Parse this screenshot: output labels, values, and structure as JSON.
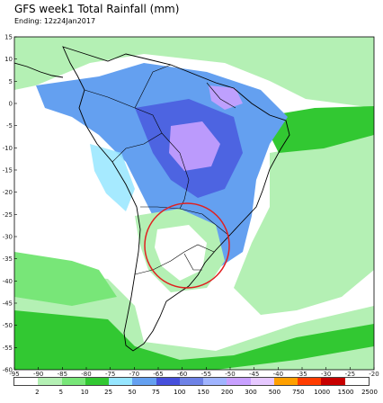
{
  "title": "GFS week1 Total Rainfall (mm)",
  "subtitle": "Ending: 12z24Jan2017",
  "latitude_labels": [
    "15",
    "10",
    "5",
    "0",
    "-5",
    "-10",
    "-15",
    "-20",
    "-25",
    "-30",
    "-35",
    "-40",
    "-45",
    "-50",
    "-55",
    "-60"
  ],
  "longitude_labels": [
    "-95",
    "-90",
    "-85",
    "-80",
    "-75",
    "-70",
    "-65",
    "-60",
    "-55",
    "-50",
    "-45",
    "-40",
    "-35",
    "-30",
    "-25",
    "-20"
  ],
  "legend": {
    "labels": [
      "2",
      "5",
      "10",
      "25",
      "50",
      "75",
      "100",
      "150",
      "200",
      "300",
      "500",
      "750",
      "1000",
      "1500",
      "2500"
    ],
    "colors": [
      "#ffffff",
      "#b4f0b4",
      "#78e678",
      "#32c832",
      "#96e6ff",
      "#64a0f0",
      "#4650dc",
      "#6e82e6",
      "#a0b4ff",
      "#c8a0ff",
      "#e6c8ff",
      "#ffa000",
      "#ff3c00",
      "#c80000",
      "#ffffff"
    ]
  },
  "highlight": {
    "shape": "ellipse",
    "color": "#e02020"
  },
  "colors": {
    "coast": "#000000",
    "border": "#000000",
    "light_green": "#b4f0b4",
    "green": "#32c832",
    "blue": "#64a0f0",
    "dark_blue": "#4650dc",
    "lavender": "#c8a0ff",
    "cyan": "#96e6ff"
  }
}
